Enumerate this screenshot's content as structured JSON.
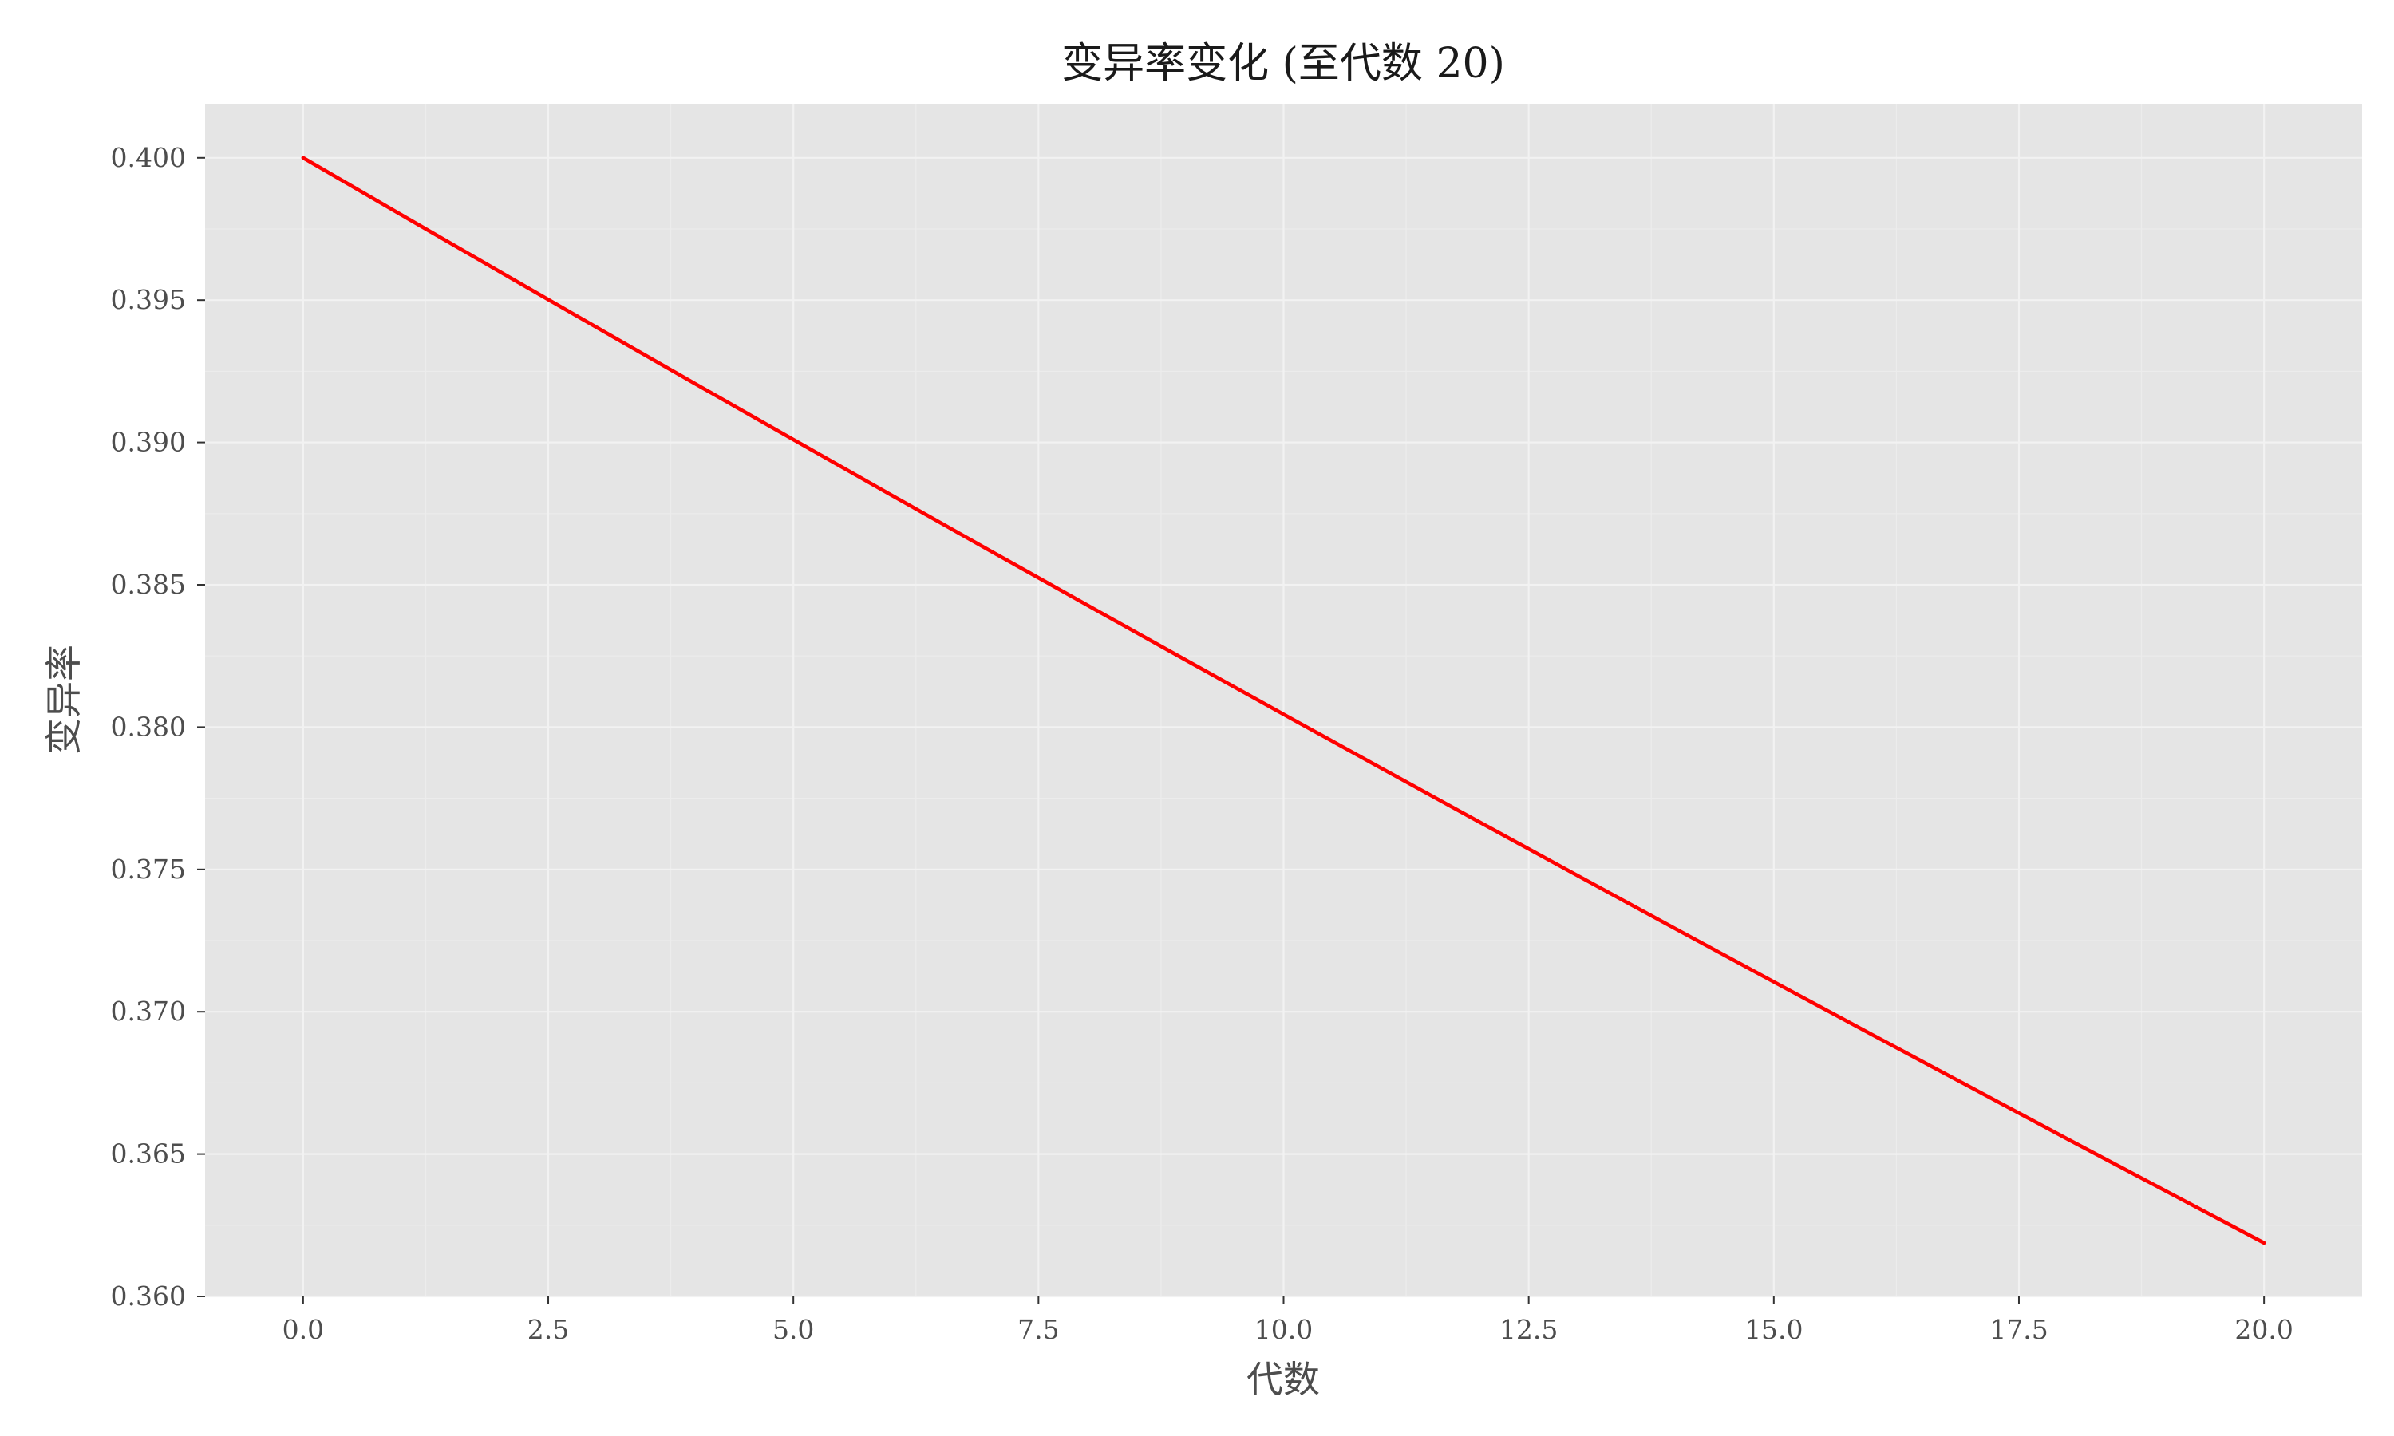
{
  "chart_data": {
    "type": "line",
    "title": "变异率变化 (至代数 20)",
    "xlabel": "代数",
    "ylabel": "变异率",
    "xlim": [
      -1.0,
      21.0
    ],
    "ylim": [
      0.36,
      0.4019
    ],
    "x_ticks": [
      0.0,
      2.5,
      5.0,
      7.5,
      10.0,
      12.5,
      15.0,
      17.5,
      20.0
    ],
    "x_tick_labels": [
      "0.0",
      "2.5",
      "5.0",
      "7.5",
      "10.0",
      "12.5",
      "15.0",
      "17.5",
      "20.0"
    ],
    "y_ticks": [
      0.36,
      0.365,
      0.37,
      0.375,
      0.38,
      0.385,
      0.39,
      0.395,
      0.4
    ],
    "y_tick_labels": [
      "0.360",
      "0.365",
      "0.370",
      "0.375",
      "0.380",
      "0.385",
      "0.390",
      "0.395",
      "0.400"
    ],
    "grid": true,
    "background": "#e5e5e5",
    "series": [
      {
        "color": "#ff0000",
        "x": [
          0,
          1,
          2,
          3,
          4,
          5,
          6,
          7,
          8,
          9,
          10,
          11,
          12,
          13,
          14,
          15,
          16,
          17,
          18,
          19,
          20
        ],
        "y": [
          0.4,
          0.398,
          0.39601,
          0.39403,
          0.39206,
          0.3901,
          0.38815,
          0.38621,
          0.38428,
          0.38236,
          0.38045,
          0.37855,
          0.37666,
          0.37478,
          0.37291,
          0.37105,
          0.3692,
          0.36736,
          0.36552,
          0.3637,
          0.36188
        ]
      }
    ]
  }
}
